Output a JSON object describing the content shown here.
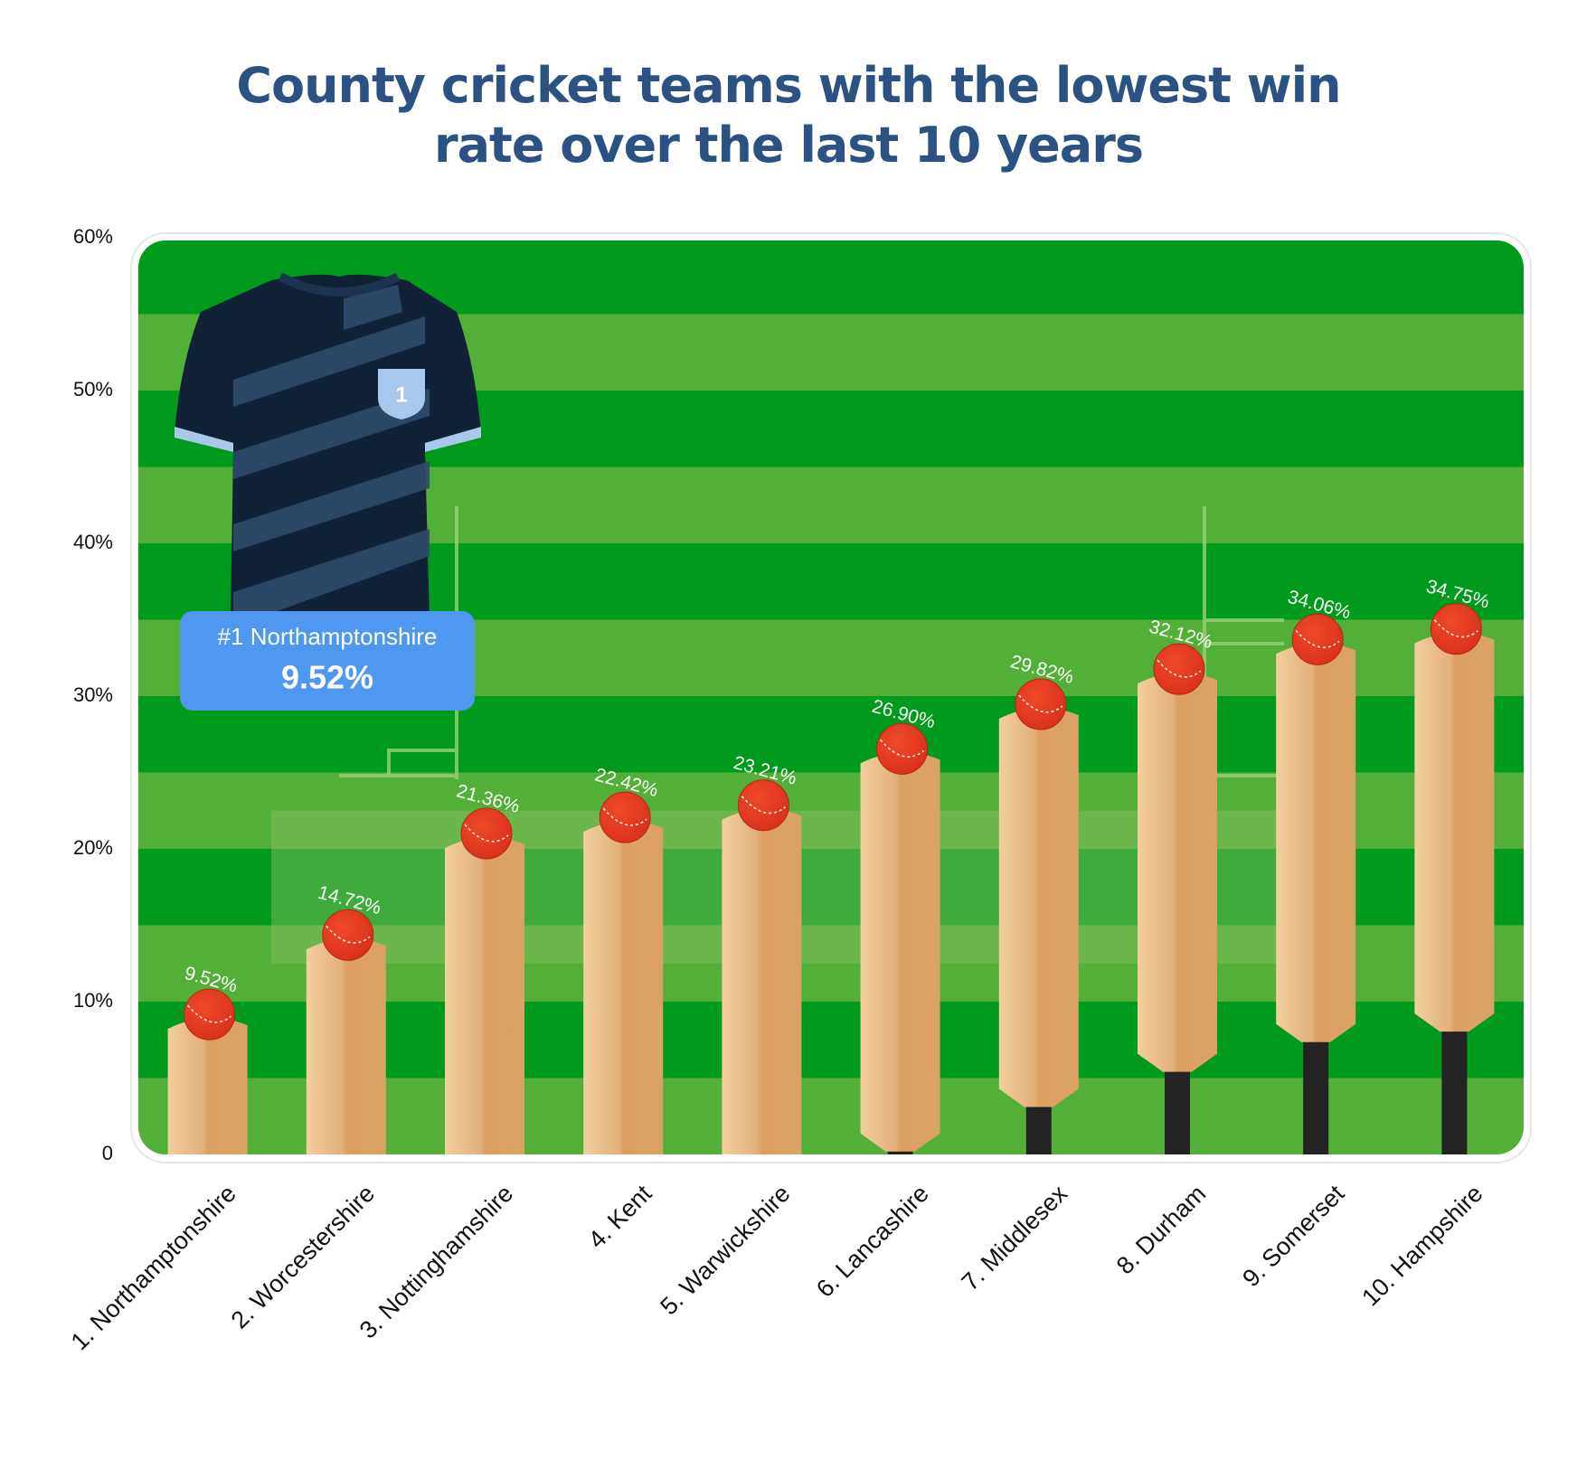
{
  "chart_data": {
    "type": "bar",
    "title": "County cricket teams with the lowest win rate over the last 10 years",
    "categories": [
      "1. Northamptonshire",
      "2. Worcestershire",
      "3. Nottinghamshire",
      "4. Kent",
      "5. Warwickshire",
      "6. Lancashire",
      "7. Middlesex",
      "8. Durham",
      "9. Somerset",
      "10. Hampshire"
    ],
    "values": [
      9.52,
      14.72,
      21.36,
      22.42,
      23.21,
      26.9,
      29.82,
      32.12,
      34.06,
      34.75
    ],
    "value_labels": [
      "9.52%",
      "14.72%",
      "21.36%",
      "22.42%",
      "23.21%",
      "26.90%",
      "29.82%",
      "32.12%",
      "34.06%",
      "34.75%"
    ],
    "color": "#e0a562",
    "ylim": [
      0,
      60
    ],
    "yticks": [
      0,
      {
        "value": 10,
        "label": "10%"
      },
      {
        "value": 20,
        "label": "20%"
      },
      {
        "value": 30,
        "label": "30%"
      },
      {
        "value": 40,
        "label": "40%"
      },
      {
        "value": 50,
        "label": "50%"
      },
      {
        "value": 60,
        "label": "60%"
      }
    ],
    "grid": false,
    "annotations": {
      "callout_title": "#1 Northamptonshire",
      "callout_value": "9.52%",
      "jersey_number": "1"
    }
  }
}
